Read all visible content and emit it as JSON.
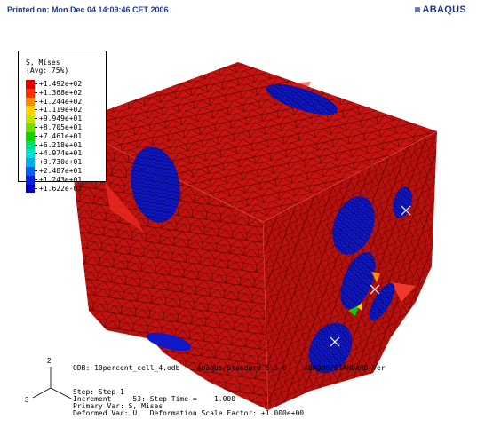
{
  "header": {
    "printed_on": "Printed on: Mon Dec 04 14:09:46 CET 2006",
    "brand": "ABAQUS",
    "brand_grip": "▥"
  },
  "legend": {
    "title": "S, Mises\n(Avg: 75%)",
    "entries": [
      {
        "value": "+1.492e+02",
        "color": "#e00000"
      },
      {
        "value": "+1.368e+02",
        "color": "#ff3000"
      },
      {
        "value": "+1.244e+02",
        "color": "#ff8c00"
      },
      {
        "value": "+1.119e+02",
        "color": "#ffd000"
      },
      {
        "value": "+9.949e+01",
        "color": "#c8e000"
      },
      {
        "value": "+8.705e+01",
        "color": "#6ee000"
      },
      {
        "value": "+7.461e+01",
        "color": "#10d000"
      },
      {
        "value": "+6.218e+01",
        "color": "#00e070"
      },
      {
        "value": "+4.974e+01",
        "color": "#00e0d0"
      },
      {
        "value": "+3.730e+01",
        "color": "#00b0e0"
      },
      {
        "value": "+2.487e+01",
        "color": "#0060f0"
      },
      {
        "value": "+1.243e+01",
        "color": "#0020e0"
      },
      {
        "value": "+1.622e-01",
        "color": "#0000c0"
      }
    ]
  },
  "info": {
    "odb": "ODB: 10percent_cell_4.odb    Abaqus/Standard 6.5-6    ABAQUS/STANDARD Ver",
    "step": "Step: Step-1",
    "increment": "Increment     53: Step Time =    1.000",
    "primary": "Primary Var: S, Mises",
    "deformed": "Deformed Var: U   Deformation Scale Factor: +1.000e+00"
  },
  "triad": {
    "axis_2": "2",
    "axis_3": "3"
  },
  "colors": {
    "fe_red": "#c81410",
    "fe_red_light": "#e22a22",
    "mesh": "#2a0000",
    "pore_blue": "#1018c8"
  }
}
